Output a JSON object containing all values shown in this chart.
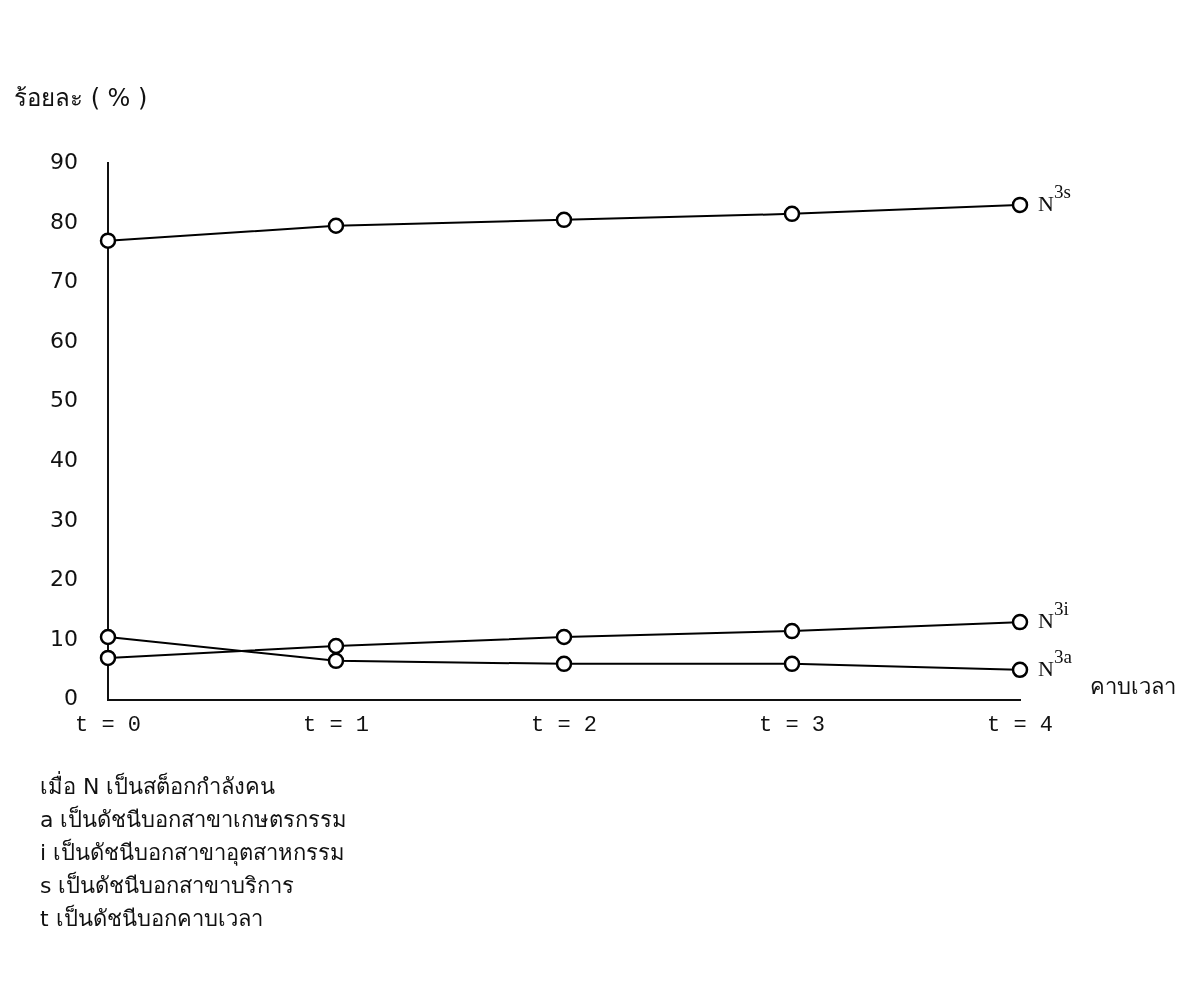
{
  "chart_data": {
    "type": "line",
    "ylabel": "ร้อยละ ( % )",
    "xlabel": "คาบเวลา",
    "categories": [
      "t = 0",
      "t = 1",
      "t = 2",
      "t = 3",
      "t = 4"
    ],
    "series": [
      {
        "name": "N$^{3s}$",
        "color": "#000000",
        "values": [
          77,
          79.5,
          80.5,
          81.5,
          83
        ]
      },
      {
        "name": "N$^{3i}$",
        "color": "#000000",
        "values": [
          7,
          9,
          10.5,
          11.5,
          13
        ]
      },
      {
        "name": "N$^{3a}$",
        "color": "#000000",
        "values": [
          10.5,
          6.5,
          6,
          6,
          5
        ]
      }
    ],
    "ylim": [
      0,
      90
    ],
    "yticks": [
      0,
      10,
      20,
      30,
      40,
      50,
      60,
      70,
      80,
      90
    ],
    "grid": false,
    "legend": false,
    "marker": "circle",
    "line_style": "solid",
    "annotations": [
      "เมื่อ N เป็นสต็อกกำลังคน",
      "a เป็นดัชนีบอกสาขาเกษตรกรรม",
      "i เป็นดัชนีบอกสาขาอุตสาหกรรม",
      "s เป็นดัชนีบอกสาขาบริการ",
      "t เป็นดัชนีบอกคาบเวลา"
    ]
  }
}
